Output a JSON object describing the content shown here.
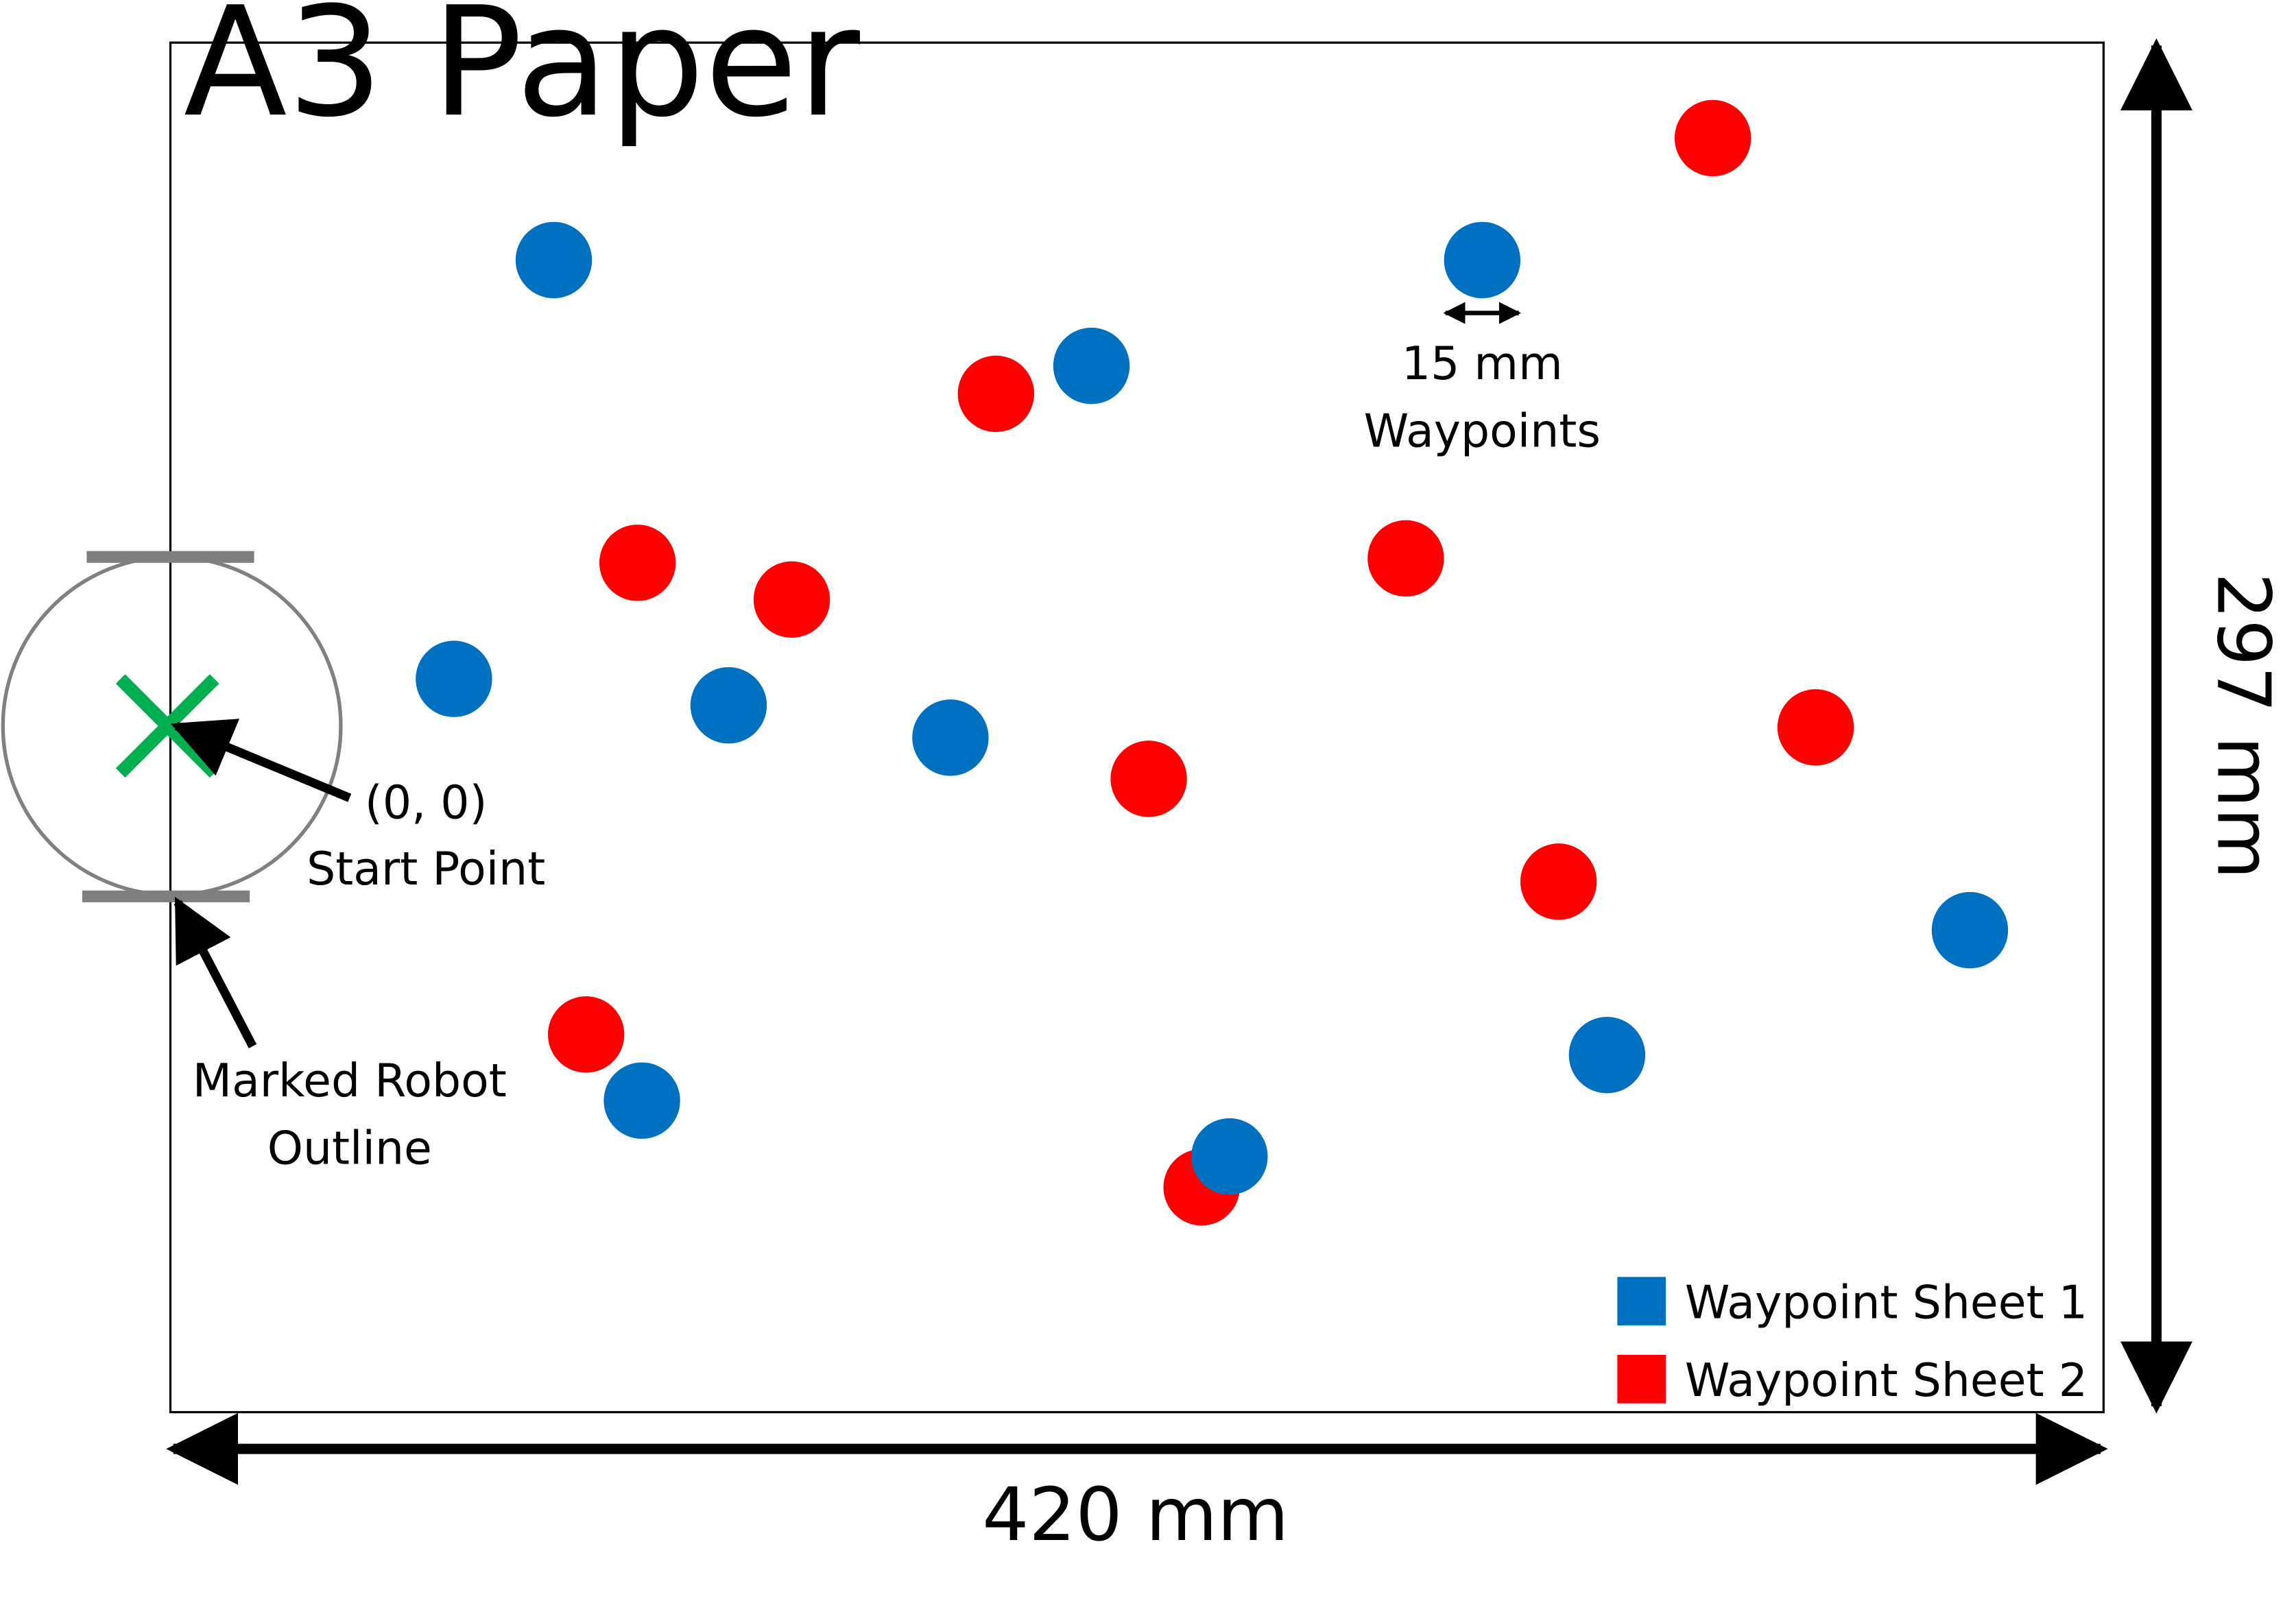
{
  "paper": {
    "label": "A3 Paper",
    "width_label": "420 mm",
    "height_label": "297 mm"
  },
  "start": {
    "coord_label": "(0, 0)",
    "name_label": "Start Point",
    "marker_color": "#00B050"
  },
  "robot": {
    "line1": "Marked Robot",
    "line2": "Outline"
  },
  "waypoint_size": {
    "line1": "15 mm",
    "line2": "Waypoints"
  },
  "legend": [
    {
      "label": "Waypoint Sheet 1",
      "color": "#0070C0"
    },
    {
      "label": "Waypoint Sheet 2",
      "color": "#FF0000"
    }
  ],
  "icons": {
    "start": "x-cross-icon",
    "arrow": "arrow-icon"
  }
}
